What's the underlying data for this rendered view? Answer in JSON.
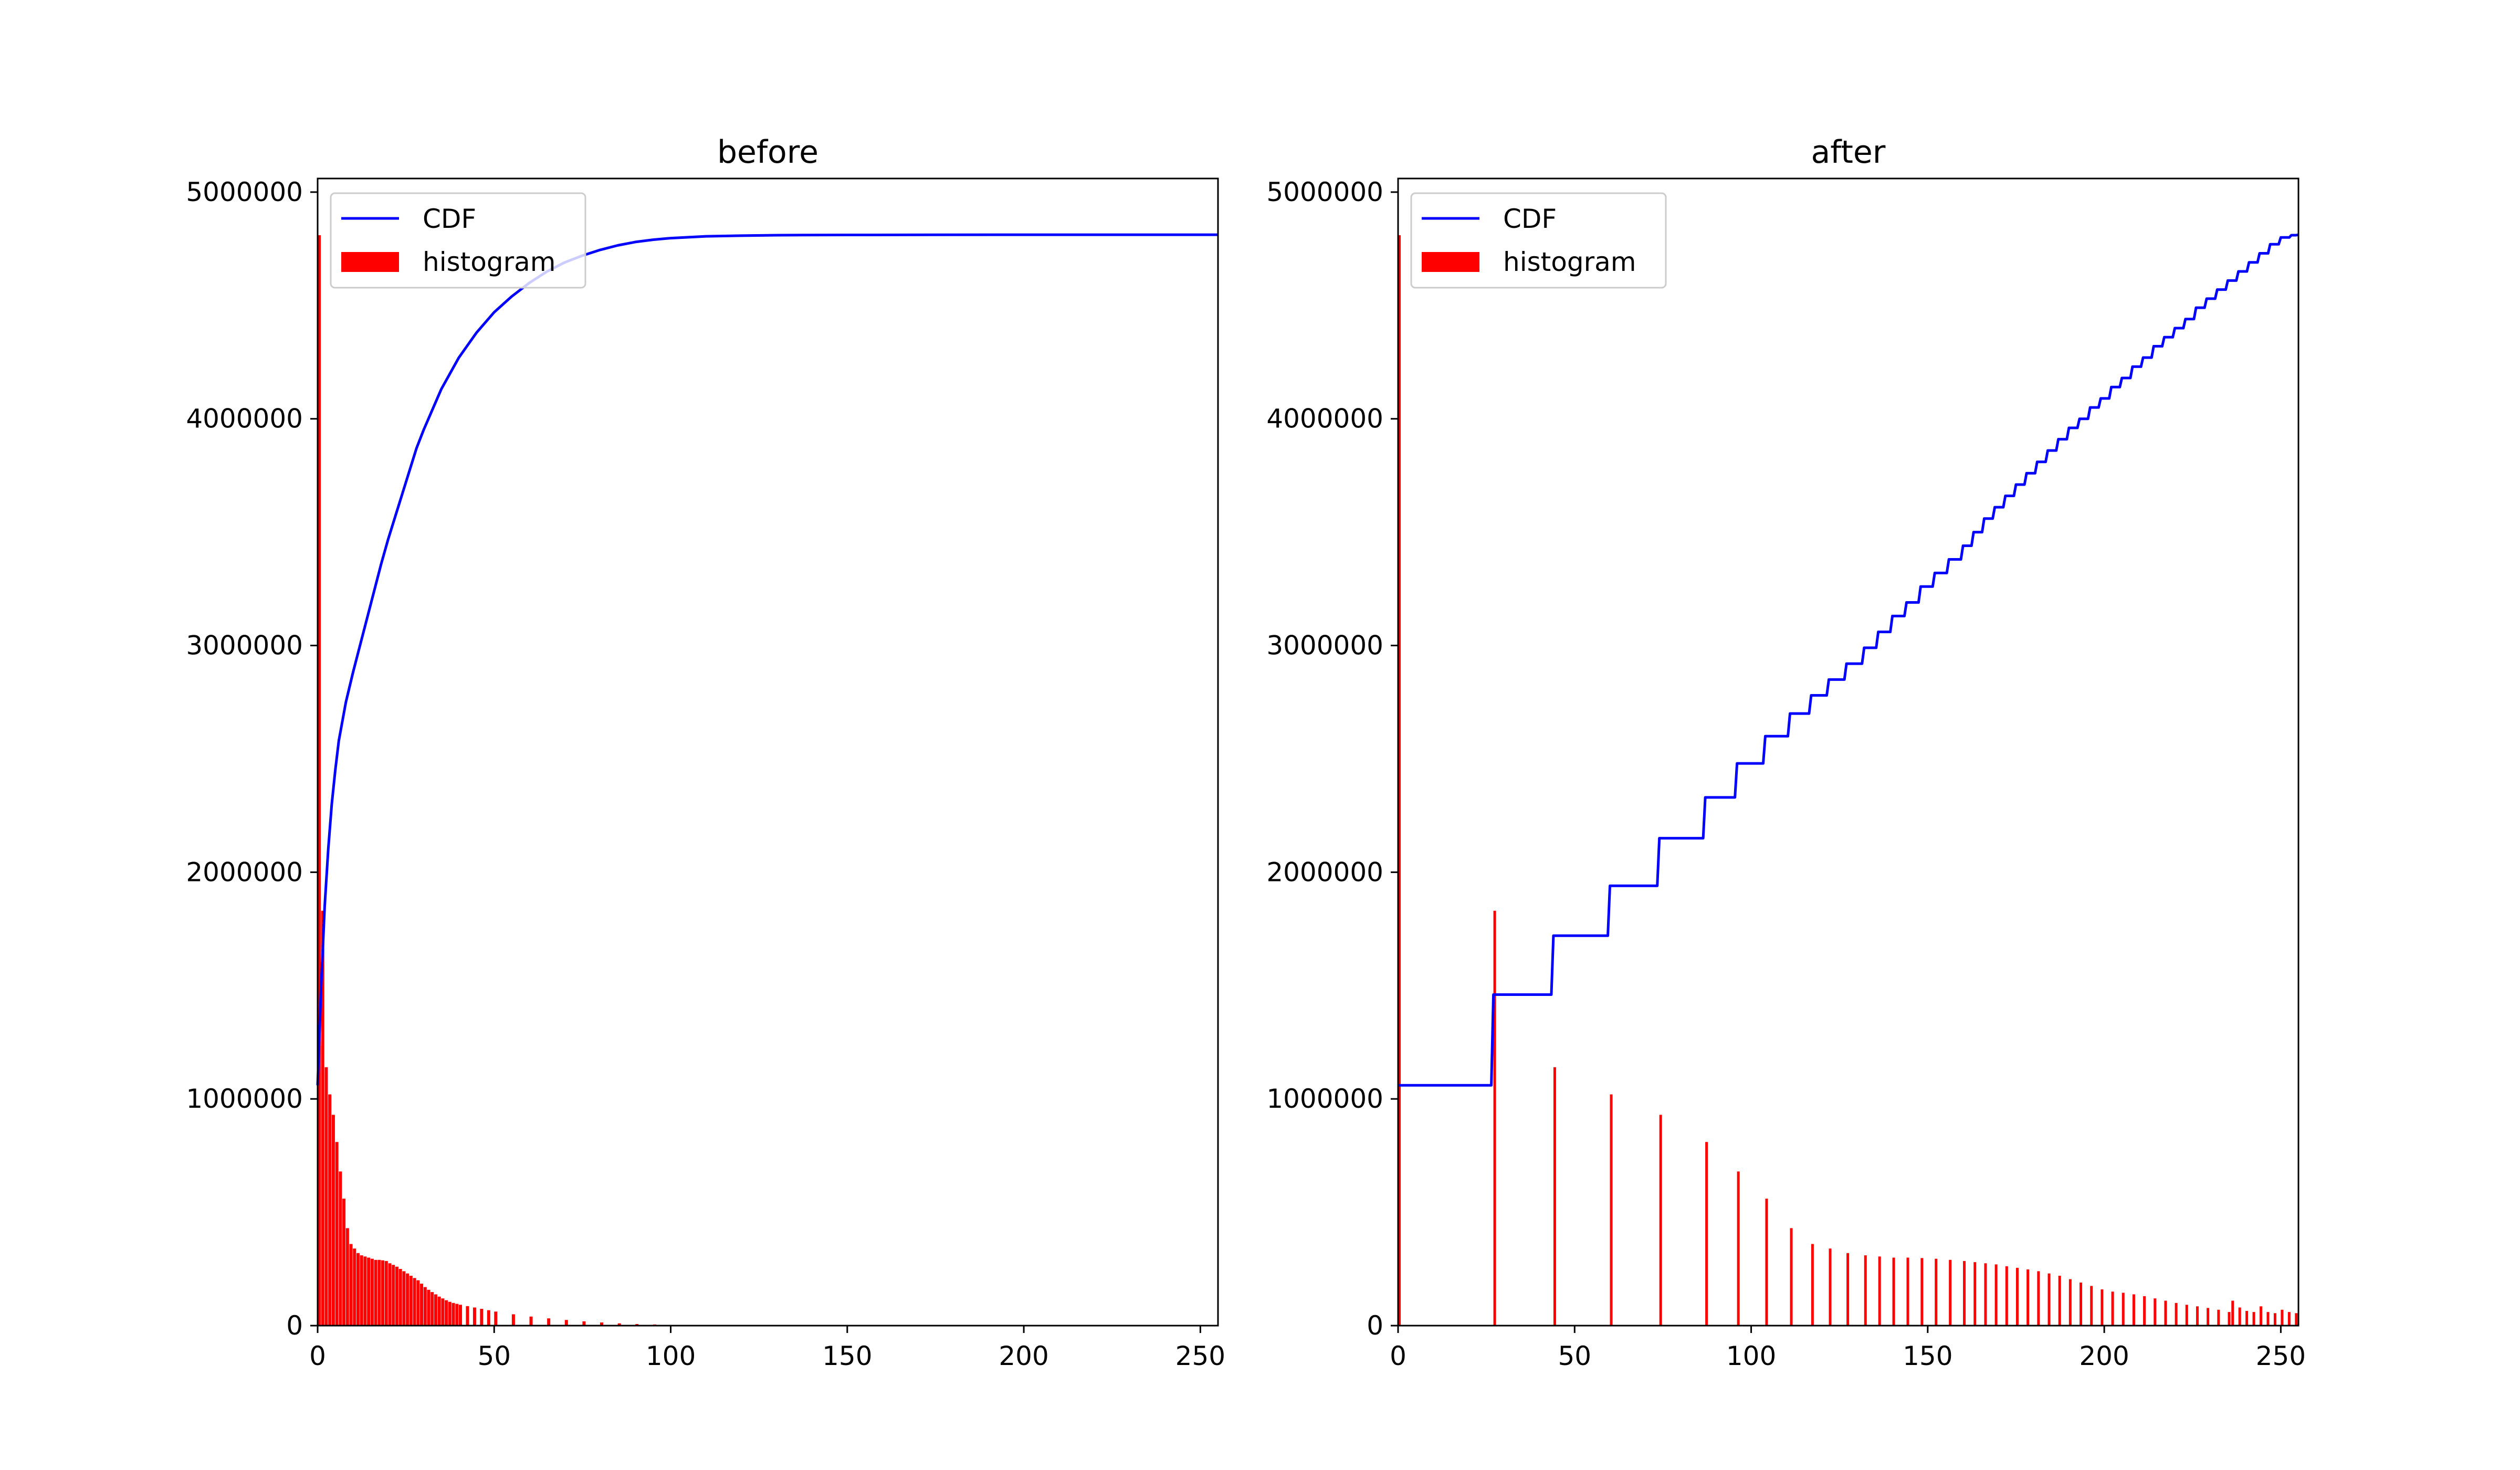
{
  "chart_data": [
    {
      "type": "bar",
      "title": "before",
      "xlabel": "",
      "ylabel": "",
      "xlim": [
        0,
        255
      ],
      "ylim": [
        0,
        5060000
      ],
      "xticks": [
        0,
        50,
        100,
        150,
        200,
        250
      ],
      "yticks": [
        0,
        1000000,
        2000000,
        3000000,
        4000000,
        5000000
      ],
      "xtick_labels": [
        "0",
        "50",
        "100",
        "150",
        "200",
        "250"
      ],
      "ytick_labels": [
        "0",
        "1000000",
        "2000000",
        "3000000",
        "4000000",
        "5000000"
      ],
      "legend": {
        "position": "upper-left",
        "entries": [
          "CDF",
          "histogram"
        ]
      },
      "colors": {
        "cdf": "#0000ff",
        "histogram": "#ff0000"
      },
      "series": [
        {
          "name": "CDF",
          "kind": "line",
          "x": [
            0,
            1,
            2,
            3,
            4,
            5,
            6,
            8,
            10,
            12,
            15,
            18,
            20,
            22,
            25,
            28,
            30,
            35,
            40,
            45,
            50,
            55,
            60,
            65,
            70,
            75,
            80,
            85,
            90,
            95,
            100,
            110,
            120,
            130,
            150,
            200,
            255
          ],
          "y": [
            1060000,
            1500000,
            1850000,
            2100000,
            2300000,
            2450000,
            2580000,
            2750000,
            2880000,
            3000000,
            3180000,
            3360000,
            3470000,
            3570000,
            3720000,
            3870000,
            3950000,
            4130000,
            4270000,
            4380000,
            4470000,
            4540000,
            4600000,
            4650000,
            4690000,
            4720000,
            4745000,
            4765000,
            4780000,
            4790000,
            4797000,
            4805000,
            4808000,
            4810000,
            4811000,
            4812000,
            4812000
          ]
        },
        {
          "name": "histogram",
          "kind": "bars",
          "x": [
            0,
            1,
            2,
            3,
            4,
            5,
            6,
            7,
            8,
            9,
            10,
            11,
            12,
            13,
            14,
            15,
            16,
            17,
            18,
            19,
            20,
            21,
            22,
            23,
            24,
            25,
            26,
            27,
            28,
            29,
            30,
            31,
            32,
            33,
            34,
            35,
            36,
            37,
            38,
            39,
            40,
            42,
            44,
            46,
            48,
            50,
            55,
            60,
            65,
            70,
            75,
            80,
            85,
            90,
            95,
            100,
            105,
            110,
            115,
            120
          ],
          "values": [
            4810000,
            1830000,
            1140000,
            1020000,
            930000,
            810000,
            680000,
            560000,
            430000,
            360000,
            340000,
            320000,
            310000,
            305000,
            300000,
            295000,
            290000,
            290000,
            288000,
            285000,
            275000,
            268000,
            260000,
            250000,
            240000,
            230000,
            220000,
            210000,
            200000,
            185000,
            170000,
            158000,
            148000,
            138000,
            128000,
            120000,
            112000,
            105000,
            100000,
            96000,
            92000,
            86000,
            80000,
            74000,
            68000,
            62000,
            50000,
            40000,
            32000,
            25000,
            19000,
            14000,
            10000,
            7000,
            5000,
            3000,
            2000,
            1000,
            500,
            200
          ]
        }
      ]
    },
    {
      "type": "bar",
      "title": "after",
      "xlabel": "",
      "ylabel": "",
      "xlim": [
        0,
        255
      ],
      "ylim": [
        0,
        5060000
      ],
      "xticks": [
        0,
        50,
        100,
        150,
        200,
        250
      ],
      "yticks": [
        0,
        1000000,
        2000000,
        3000000,
        4000000,
        5000000
      ],
      "xtick_labels": [
        "0",
        "50",
        "100",
        "150",
        "200",
        "250"
      ],
      "ytick_labels": [
        "0",
        "1000000",
        "2000000",
        "3000000",
        "4000000",
        "5000000"
      ],
      "legend": {
        "position": "upper-left",
        "entries": [
          "CDF",
          "histogram"
        ]
      },
      "colors": {
        "cdf": "#0000ff",
        "histogram": "#ff0000"
      },
      "series": [
        {
          "name": "CDF",
          "kind": "step-line",
          "x": [
            0,
            27,
            44,
            60,
            74,
            87,
            96,
            104,
            111,
            117,
            122,
            127,
            132,
            136,
            140,
            144,
            148,
            152,
            156,
            160,
            163,
            166,
            169,
            172,
            175,
            178,
            181,
            184,
            187,
            190,
            193,
            196,
            199,
            202,
            205,
            208,
            211,
            214,
            217,
            220,
            223,
            226,
            229,
            232,
            235,
            238,
            241,
            244,
            247,
            250,
            253,
            255
          ],
          "y": [
            1060000,
            1460000,
            1720000,
            1940000,
            2150000,
            2330000,
            2480000,
            2600000,
            2700000,
            2780000,
            2850000,
            2920000,
            2990000,
            3060000,
            3130000,
            3190000,
            3260000,
            3320000,
            3380000,
            3440000,
            3500000,
            3560000,
            3610000,
            3660000,
            3710000,
            3760000,
            3810000,
            3860000,
            3910000,
            3960000,
            4000000,
            4050000,
            4090000,
            4140000,
            4180000,
            4230000,
            4270000,
            4320000,
            4360000,
            4400000,
            4440000,
            4490000,
            4530000,
            4570000,
            4610000,
            4650000,
            4690000,
            4730000,
            4770000,
            4800000,
            4810000,
            4812000
          ]
        },
        {
          "name": "histogram",
          "kind": "bars",
          "x": [
            0,
            27,
            44,
            60,
            74,
            87,
            96,
            104,
            111,
            117,
            122,
            127,
            132,
            136,
            140,
            144,
            148,
            152,
            156,
            160,
            163,
            166,
            169,
            172,
            175,
            178,
            181,
            184,
            187,
            190,
            193,
            196,
            199,
            202,
            205,
            208,
            211,
            214,
            217,
            220,
            223,
            226,
            229,
            232,
            235,
            236,
            238,
            240,
            242,
            244,
            246,
            248,
            250,
            252,
            254
          ],
          "values": [
            4810000,
            1830000,
            1140000,
            1020000,
            930000,
            810000,
            680000,
            560000,
            430000,
            360000,
            340000,
            320000,
            310000,
            305000,
            300000,
            300000,
            298000,
            295000,
            290000,
            285000,
            280000,
            275000,
            270000,
            262000,
            255000,
            248000,
            240000,
            230000,
            220000,
            205000,
            190000,
            175000,
            160000,
            150000,
            145000,
            138000,
            130000,
            120000,
            110000,
            100000,
            92000,
            85000,
            78000,
            70000,
            60000,
            110000,
            80000,
            65000,
            60000,
            85000,
            60000,
            55000,
            70000,
            60000,
            55000
          ]
        }
      ]
    }
  ]
}
